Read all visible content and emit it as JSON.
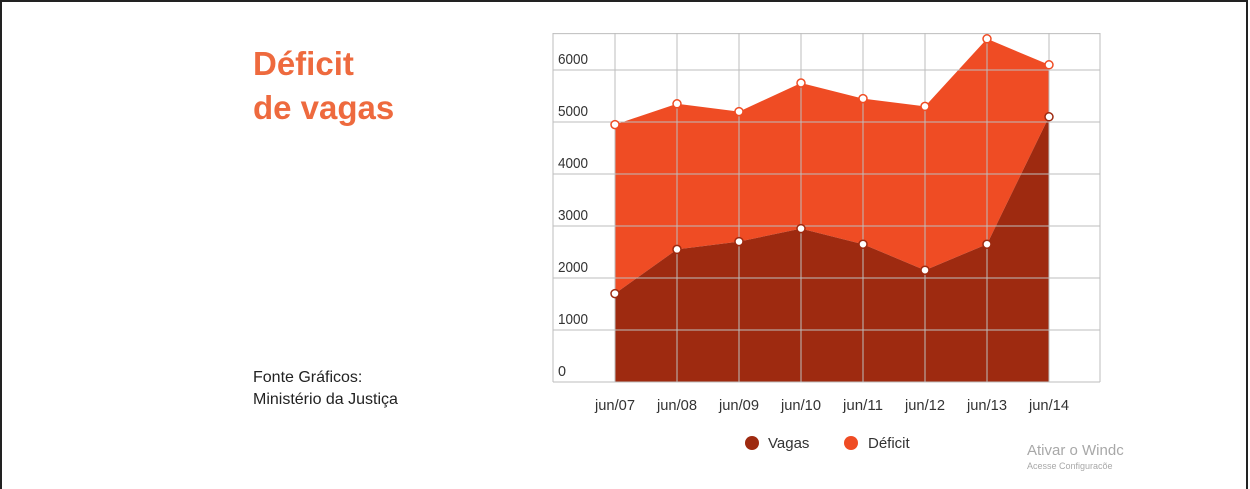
{
  "title": {
    "line1": "Déficit",
    "line2": "de vagas"
  },
  "source": {
    "line1": "Fonte Gráficos:",
    "line2": "Ministério da Justiça"
  },
  "watermark": {
    "line1": "Ativar o Windc",
    "line2": "Acesse Configuracõe"
  },
  "colors": {
    "vagas": "#9e2a10",
    "deficit": "#ef4c24",
    "title": "#ee6a3e",
    "grid": "#bdbdbd"
  },
  "chart_data": {
    "type": "area",
    "stacked": true,
    "categories": [
      "jun/07",
      "jun/08",
      "jun/09",
      "jun/10",
      "jun/11",
      "jun/12",
      "jun/13",
      "jun/14"
    ],
    "series": [
      {
        "name": "Vagas",
        "values": [
          1700,
          2550,
          2700,
          2950,
          2650,
          2150,
          2650,
          5100
        ]
      },
      {
        "name": "Déficit",
        "values": [
          3250,
          2800,
          2500,
          2800,
          2800,
          3150,
          3950,
          1000
        ]
      }
    ],
    "yticks": [
      0,
      1000,
      2000,
      3000,
      4000,
      5000,
      6000
    ],
    "ylim": [
      0,
      7000
    ],
    "grid": true,
    "legend": {
      "position": "bottom",
      "entries": [
        "Vagas",
        "Déficit"
      ]
    }
  }
}
